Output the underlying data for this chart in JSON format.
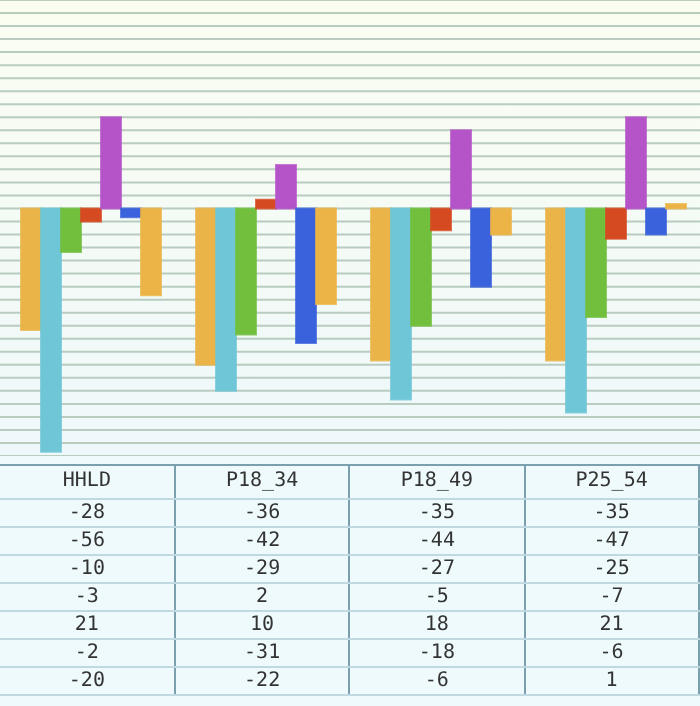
{
  "chart_data": {
    "type": "bar",
    "categories": [
      "HHLD",
      "P18_34",
      "P18_49",
      "P25_54"
    ],
    "series": [
      {
        "color": "#eab448",
        "values": [
          -28,
          -36,
          -35,
          -35
        ]
      },
      {
        "color": "#6ec6d6",
        "values": [
          -56,
          -42,
          -44,
          -47
        ]
      },
      {
        "color": "#72bf3e",
        "values": [
          -10,
          -29,
          -27,
          -25
        ]
      },
      {
        "color": "#d64a22",
        "values": [
          -3,
          2,
          -5,
          -7
        ]
      },
      {
        "color": "#b454c8",
        "values": [
          21,
          10,
          18,
          21
        ]
      },
      {
        "color": "#3a62dc",
        "values": [
          -2,
          -31,
          -18,
          -6
        ]
      },
      {
        "color": "#ecb446",
        "values": [
          -20,
          -22,
          -6,
          1
        ]
      }
    ],
    "data_labels": true,
    "grid": "y"
  }
}
